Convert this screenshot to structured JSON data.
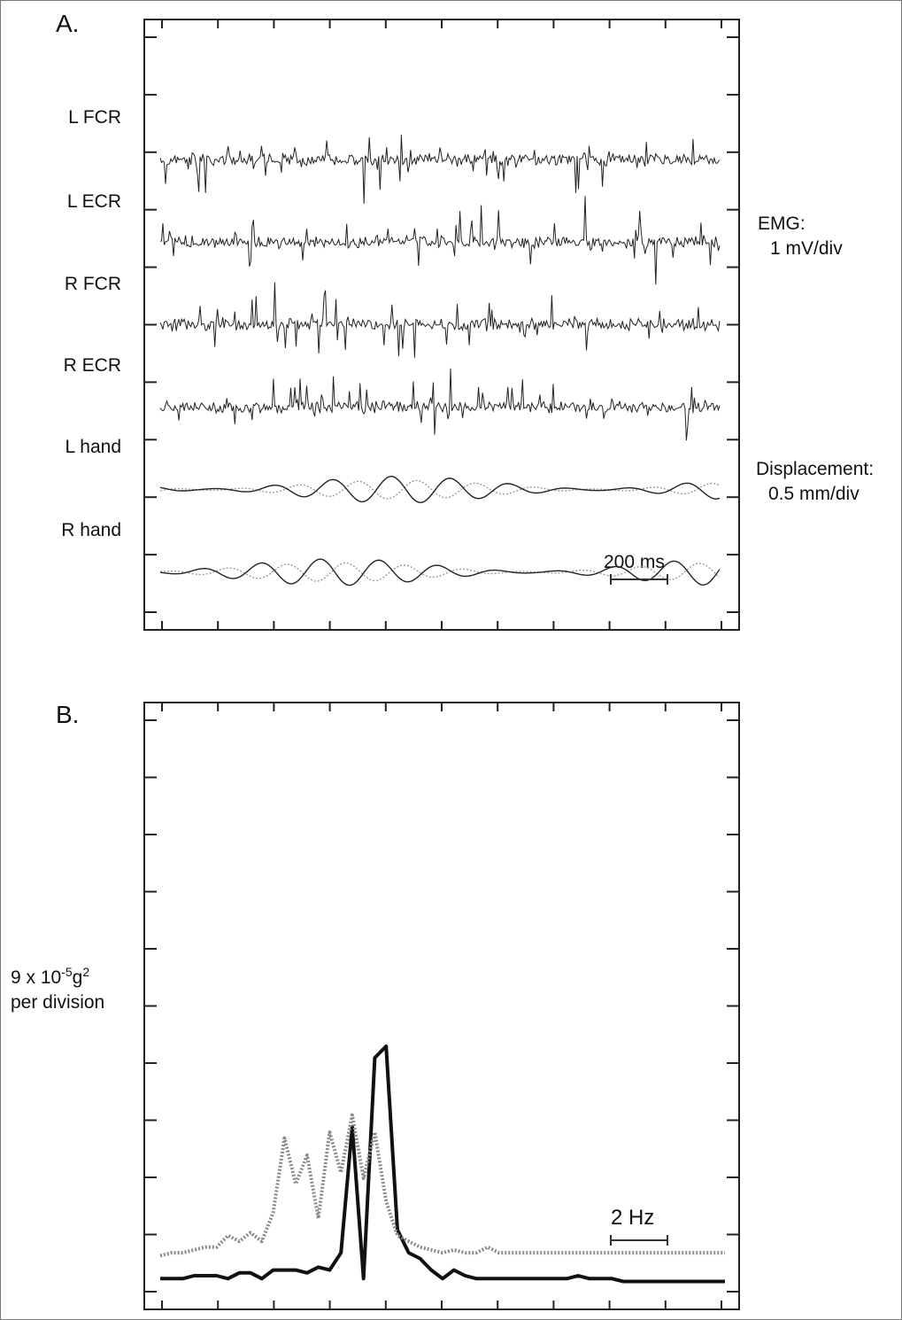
{
  "panel_a": {
    "label": "A.",
    "trace_labels": [
      "L FCR",
      "L ECR",
      "R FCR",
      "R ECR",
      "L hand",
      "R hand"
    ],
    "emg_scale": [
      "EMG:",
      "1 mV/div"
    ],
    "displacement_scale": [
      "Displacement:",
      "0.5 mm/div"
    ],
    "time_scale_label": "200 ms"
  },
  "panel_b": {
    "label": "B.",
    "y_scale": {
      "prefix": "9 x 10",
      "exp": "-5",
      "unit": "g",
      "unit_exp": "2",
      "line2": "per division"
    },
    "freq_scale_label": "2 Hz"
  },
  "chart_data": [
    {
      "type": "line",
      "title": "A.",
      "x_unit_per_division": "200 ms",
      "x_divisions": 10,
      "y_divisions": 10,
      "series": [
        {
          "name": "L FCR",
          "kind": "EMG",
          "scale": "1 mV/div",
          "baseline_div_from_top": 1.65
        },
        {
          "name": "L ECR",
          "kind": "EMG",
          "scale": "1 mV/div",
          "baseline_div_from_top": 3.1
        },
        {
          "name": "R FCR",
          "kind": "EMG",
          "scale": "1 mV/div",
          "baseline_div_from_top": 4.55
        },
        {
          "name": "R ECR",
          "kind": "EMG",
          "scale": "1 mV/div",
          "baseline_div_from_top": 6.0
        },
        {
          "name": "L hand",
          "kind": "Displacement",
          "scale": "0.5 mm/div",
          "baseline_div_from_top": 7.45
        },
        {
          "name": "R hand",
          "kind": "Displacement",
          "scale": "0.5 mm/div",
          "baseline_div_from_top": 8.9
        }
      ],
      "grid": false
    },
    {
      "type": "line",
      "title": "B.",
      "x_unit_per_division": "2 Hz",
      "y_unit_per_division": "9 x 10^-5 g^2",
      "x": [
        0.0,
        0.4,
        0.8,
        1.2,
        1.6,
        2.0,
        2.4,
        2.8,
        3.2,
        3.6,
        4.0,
        4.4,
        4.8,
        5.2,
        5.6,
        6.0,
        6.4,
        6.8,
        7.2,
        7.6,
        8.0,
        8.4,
        8.8,
        9.2,
        9.6,
        10.0,
        10.4,
        10.8,
        11.2,
        11.6,
        12.0,
        12.4,
        12.8,
        13.2,
        13.6,
        14.0,
        14.4,
        14.8,
        15.2,
        15.6,
        16.0,
        16.4,
        16.8,
        17.2,
        17.6,
        18.0,
        18.4,
        18.8,
        19.2,
        19.6,
        20.0
      ],
      "series": [
        {
          "name": "solid",
          "values": [
            0.15,
            0.15,
            0.15,
            0.2,
            0.2,
            0.2,
            0.15,
            0.25,
            0.25,
            0.15,
            0.3,
            0.3,
            0.3,
            0.25,
            0.35,
            0.3,
            0.6,
            2.8,
            0.15,
            4.0,
            4.2,
            1.0,
            0.6,
            0.5,
            0.3,
            0.15,
            0.3,
            0.2,
            0.15,
            0.15,
            0.15,
            0.15,
            0.15,
            0.15,
            0.15,
            0.15,
            0.15,
            0.2,
            0.15,
            0.15,
            0.15,
            0.1,
            0.1,
            0.1,
            0.1,
            0.1,
            0.1,
            0.1,
            0.1,
            0.1,
            0.1
          ]
        },
        {
          "name": "dotted",
          "values": [
            0.55,
            0.6,
            0.6,
            0.65,
            0.7,
            0.7,
            0.9,
            0.8,
            0.95,
            0.8,
            1.3,
            2.6,
            1.8,
            2.3,
            1.2,
            2.7,
            2.0,
            3.0,
            1.9,
            2.7,
            1.5,
            0.9,
            0.8,
            0.7,
            0.65,
            0.6,
            0.65,
            0.6,
            0.6,
            0.7,
            0.6,
            0.6,
            0.6,
            0.6,
            0.6,
            0.6,
            0.6,
            0.6,
            0.6,
            0.6,
            0.6,
            0.6,
            0.6,
            0.6,
            0.6,
            0.6,
            0.6,
            0.6,
            0.6,
            0.6,
            0.6
          ]
        }
      ],
      "grid": false
    }
  ]
}
